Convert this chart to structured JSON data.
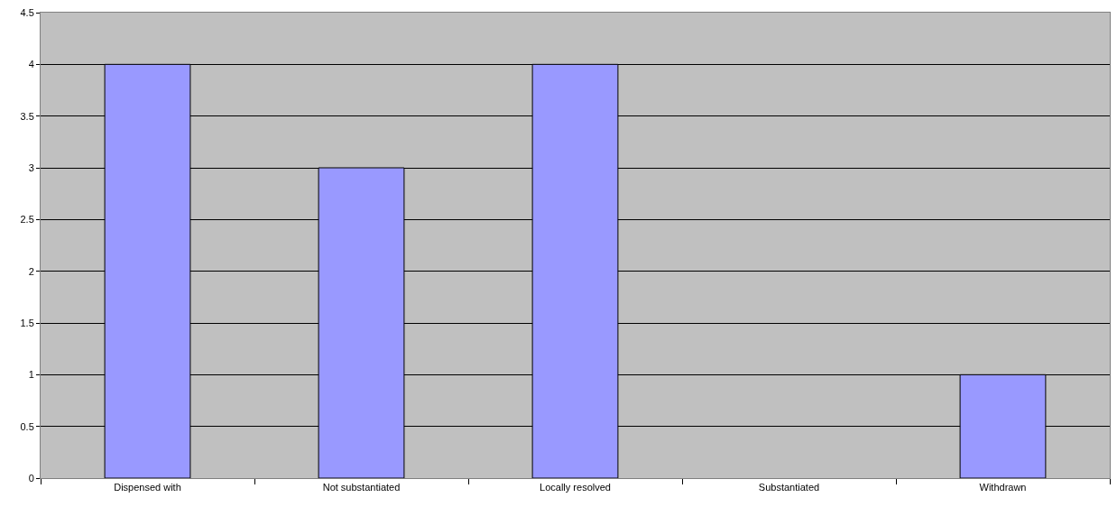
{
  "chart_data": {
    "type": "bar",
    "categories": [
      "Dispensed with",
      "Not substantiated",
      "Locally resolved",
      "Substantiated",
      "Withdrawn"
    ],
    "values": [
      4,
      3,
      4,
      0,
      1
    ],
    "color": "#9999ff",
    "ylim": [
      0,
      4.5
    ],
    "yticks": [
      0,
      0.5,
      1,
      1.5,
      2,
      2.5,
      3,
      3.5,
      4,
      4.5
    ],
    "grid": "y"
  }
}
